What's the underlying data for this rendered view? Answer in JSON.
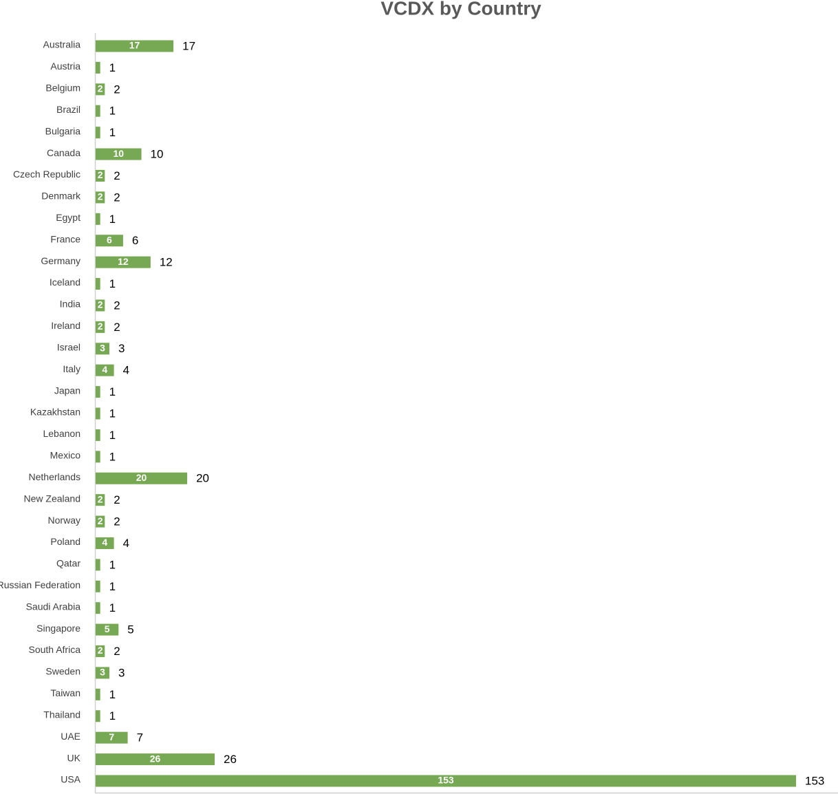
{
  "chart_data": {
    "type": "hbar",
    "title": "VCDX by Country",
    "categories": [
      "Australia",
      "Austria",
      "Belgium",
      "Brazil",
      "Bulgaria",
      "Canada",
      "Czech Republic",
      "Denmark",
      "Egypt",
      "France",
      "Germany",
      "Iceland",
      "India",
      "Ireland",
      "Israel",
      "Italy",
      "Japan",
      "Kazakhstan",
      "Lebanon",
      "Mexico",
      "Netherlands",
      "New Zealand",
      "Norway",
      "Poland",
      "Qatar",
      "Russian Federation",
      "Saudi Arabia",
      "Singapore",
      "South Africa",
      "Sweden",
      "Taiwan",
      "Thailand",
      "UAE",
      "UK",
      "USA"
    ],
    "values": [
      17,
      1,
      2,
      1,
      1,
      10,
      2,
      2,
      1,
      6,
      12,
      1,
      2,
      2,
      3,
      4,
      1,
      1,
      1,
      1,
      20,
      2,
      2,
      4,
      1,
      1,
      1,
      5,
      2,
      3,
      1,
      1,
      7,
      26,
      153
    ],
    "color": "#77a854"
  }
}
